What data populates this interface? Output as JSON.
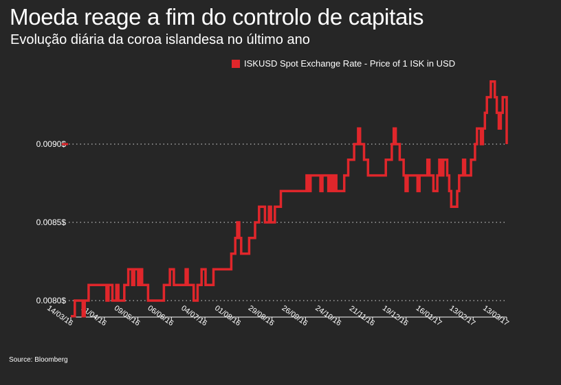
{
  "title": "Moeda reage a fim do controlo de capitais",
  "subtitle": "Evolução diária da coroa islandesa no último ano",
  "source": "Source: Bloomberg",
  "colors": {
    "background": "#262626",
    "line": "#e0262b",
    "text": "#ffffff",
    "grid": "#bdbdbd"
  },
  "chart_data": {
    "type": "line",
    "title": "Moeda reage a fim do controlo de capitais",
    "subtitle": "Evolução diária da coroa islandesa no último ano",
    "legend": "top-right",
    "grid": "horizontal dotted",
    "ylim": [
      0.0079,
      0.00912
    ],
    "yticks": [
      {
        "value": 0.008,
        "label": "0.0080$"
      },
      {
        "value": 0.0085,
        "label": "0.0085$"
      },
      {
        "value": 0.009,
        "label": "0.0090$"
      }
    ],
    "xticks": [
      "14/03/16",
      "11/04/16",
      "09/05/16",
      "06/06/16",
      "04/07/16",
      "01/08/16",
      "29/08/16",
      "26/09/16",
      "24/10/16",
      "21/11/16",
      "19/12/16",
      "16/01/17",
      "13/02/17",
      "13/03/17"
    ],
    "series": [
      {
        "name": "ISKUSD Spot Exchange Rate - Price of 1 ISK in USD",
        "color": "#e0262b",
        "values": [
          0.0079,
          0.0079,
          0.008,
          0.008,
          0.008,
          0.008,
          0.0079,
          0.008,
          0.008,
          0.0081,
          0.0081,
          0.0081,
          0.0081,
          0.0081,
          0.0081,
          0.0081,
          0.0081,
          0.0081,
          0.008,
          0.0081,
          0.0081,
          0.008,
          0.008,
          0.0081,
          0.008,
          0.008,
          0.008,
          0.0081,
          0.0081,
          0.0082,
          0.0082,
          0.0081,
          0.0082,
          0.0082,
          0.0081,
          0.0082,
          0.0081,
          0.0081,
          0.0081,
          0.008,
          0.008,
          0.008,
          0.008,
          0.008,
          0.008,
          0.008,
          0.008,
          0.0081,
          0.0081,
          0.0081,
          0.0082,
          0.0082,
          0.0081,
          0.0081,
          0.0081,
          0.0081,
          0.0081,
          0.0081,
          0.0082,
          0.0081,
          0.0081,
          0.0081,
          0.008,
          0.008,
          0.0081,
          0.0081,
          0.0082,
          0.0082,
          0.0081,
          0.0081,
          0.0081,
          0.0081,
          0.0082,
          0.0082,
          0.0082,
          0.0082,
          0.0082,
          0.0082,
          0.0082,
          0.0082,
          0.0082,
          0.0083,
          0.0083,
          0.0084,
          0.0085,
          0.0084,
          0.0083,
          0.0083,
          0.0083,
          0.0083,
          0.0084,
          0.0084,
          0.0084,
          0.0085,
          0.0085,
          0.0086,
          0.0086,
          0.0086,
          0.0085,
          0.0085,
          0.0086,
          0.0085,
          0.0085,
          0.0086,
          0.0086,
          0.0086,
          0.0087,
          0.0087,
          0.0087,
          0.0087,
          0.0087,
          0.0087,
          0.0087,
          0.0087,
          0.0087,
          0.0087,
          0.0087,
          0.0087,
          0.0087,
          0.0088,
          0.0087,
          0.0088,
          0.0088,
          0.0088,
          0.0088,
          0.0088,
          0.0087,
          0.0088,
          0.0088,
          0.0088,
          0.0087,
          0.0088,
          0.0087,
          0.0088,
          0.0087,
          0.0087,
          0.0087,
          0.0087,
          0.0088,
          0.0088,
          0.0089,
          0.0089,
          0.0089,
          0.009,
          0.009,
          0.0091,
          0.009,
          0.009,
          0.0089,
          0.0089,
          0.0088,
          0.0088,
          0.0088,
          0.0088,
          0.0088,
          0.0088,
          0.0088,
          0.0088,
          0.0088,
          0.0089,
          0.0089,
          0.0089,
          0.009,
          0.0091,
          0.009,
          0.009,
          0.0089,
          0.0089,
          0.0088,
          0.0087,
          0.0088,
          0.0088,
          0.0088,
          0.0088,
          0.0088,
          0.0087,
          0.0088,
          0.0088,
          0.0088,
          0.0088,
          0.0089,
          0.0088,
          0.0088,
          0.0087,
          0.0087,
          0.0088,
          0.0089,
          0.0088,
          0.0089,
          0.0089,
          0.0088,
          0.0087,
          0.0086,
          0.0086,
          0.0086,
          0.0087,
          0.0088,
          0.0088,
          0.0089,
          0.0088,
          0.0088,
          0.0088,
          0.0089,
          0.0089,
          0.009,
          0.0091,
          0.0091,
          0.009,
          0.0091,
          0.0092,
          0.0093,
          0.0093,
          0.0094,
          0.0094,
          0.0093,
          0.0092,
          0.0091,
          0.0092,
          0.0093,
          0.0093,
          0.009
        ]
      }
    ],
    "end_markers": {
      "left": 0.009
    }
  }
}
